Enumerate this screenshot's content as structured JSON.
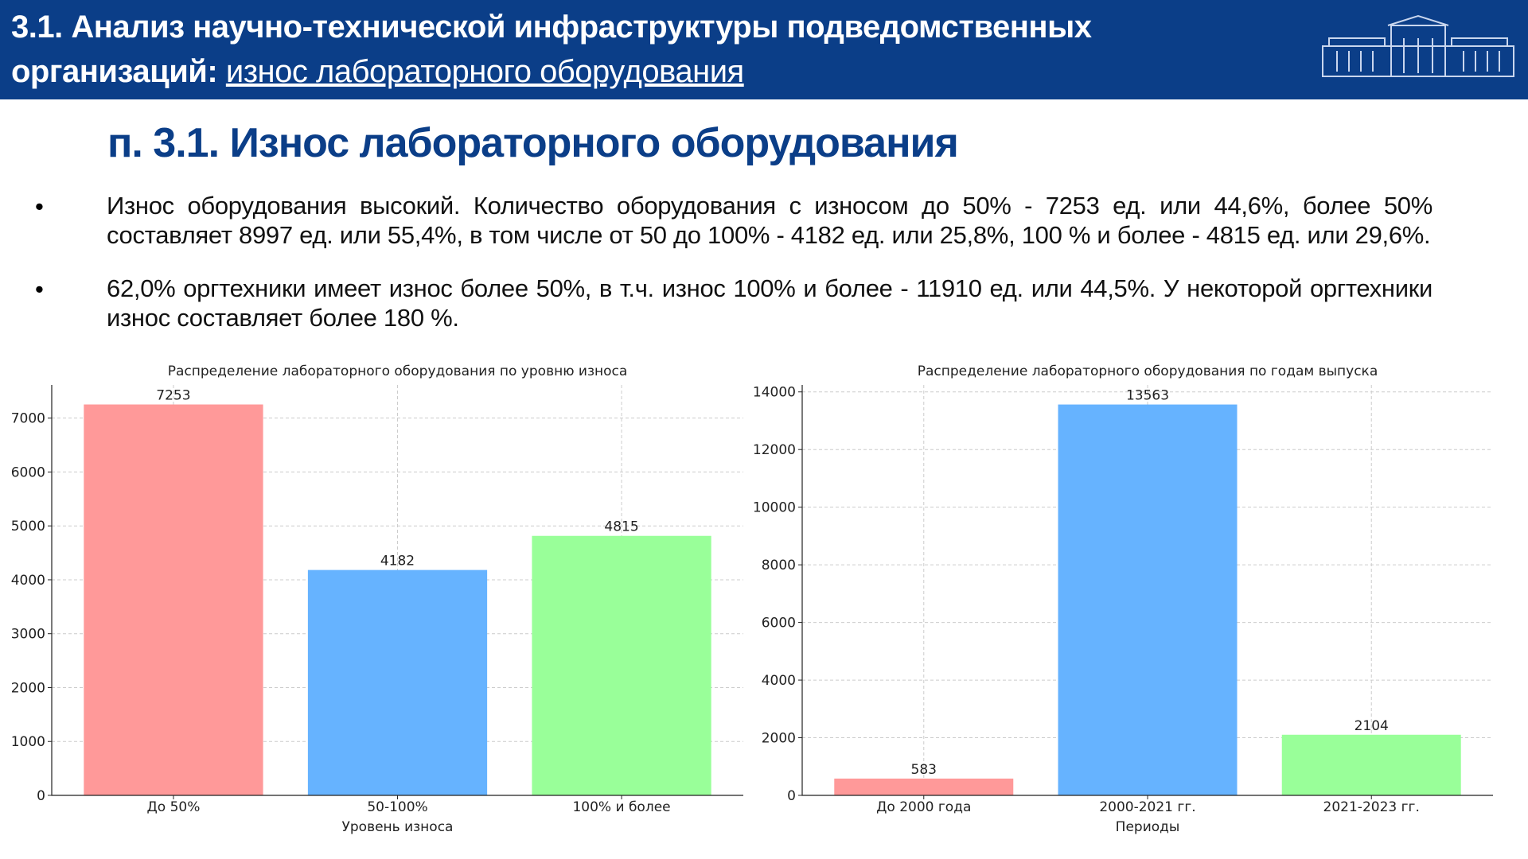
{
  "header": {
    "title_bold": "3.1. Анализ научно-технической инфраструктуры подведомственных организаций:",
    "title_link": "износ лабораторного оборудования"
  },
  "heading": "п. 3.1. Износ лабораторного оборудования",
  "bullets": [
    "Износ оборудования высокий. Количество оборудования с износом до 50% - 7253 ед. или 44,6%, более 50% составляет 8997 ед. или 55,4%, в том числе от 50 до 100% - 4182 ед. или 25,8%, 100 % и более - 4815 ед. или 29,6%.",
    "62,0% оргтехники имеет износ более 50%, в т.ч. износ 100% и более - 11910 ед. или 44,5%. У некоторой оргтехники износ составляет более 180 %."
  ],
  "chart_data": [
    {
      "type": "bar",
      "title": "Распределение лабораторного оборудования по уровню износа",
      "x_label": "Уровень износа",
      "categories": [
        "До 50%",
        "50-100%",
        "100% и более"
      ],
      "values": [
        7253,
        4182,
        4815
      ],
      "colors": [
        "#ff9999",
        "#66b3ff",
        "#99ff99"
      ],
      "ylim": [
        0,
        7615
      ],
      "yticks": [
        0,
        1000,
        2000,
        3000,
        4000,
        5000,
        6000,
        7000
      ],
      "grid": true
    },
    {
      "type": "bar",
      "title": "Распределение лабораторного оборудования по годам выпуска",
      "x_label": "Периоды",
      "categories": [
        "До 2000 года",
        "2000-2021 гг.",
        "2021-2023 гг."
      ],
      "values": [
        583,
        13563,
        2104
      ],
      "colors": [
        "#ff9999",
        "#66b3ff",
        "#99ff99"
      ],
      "ylim": [
        0,
        14241
      ],
      "yticks": [
        0,
        2000,
        4000,
        6000,
        8000,
        10000,
        12000,
        14000
      ],
      "grid": true
    }
  ]
}
